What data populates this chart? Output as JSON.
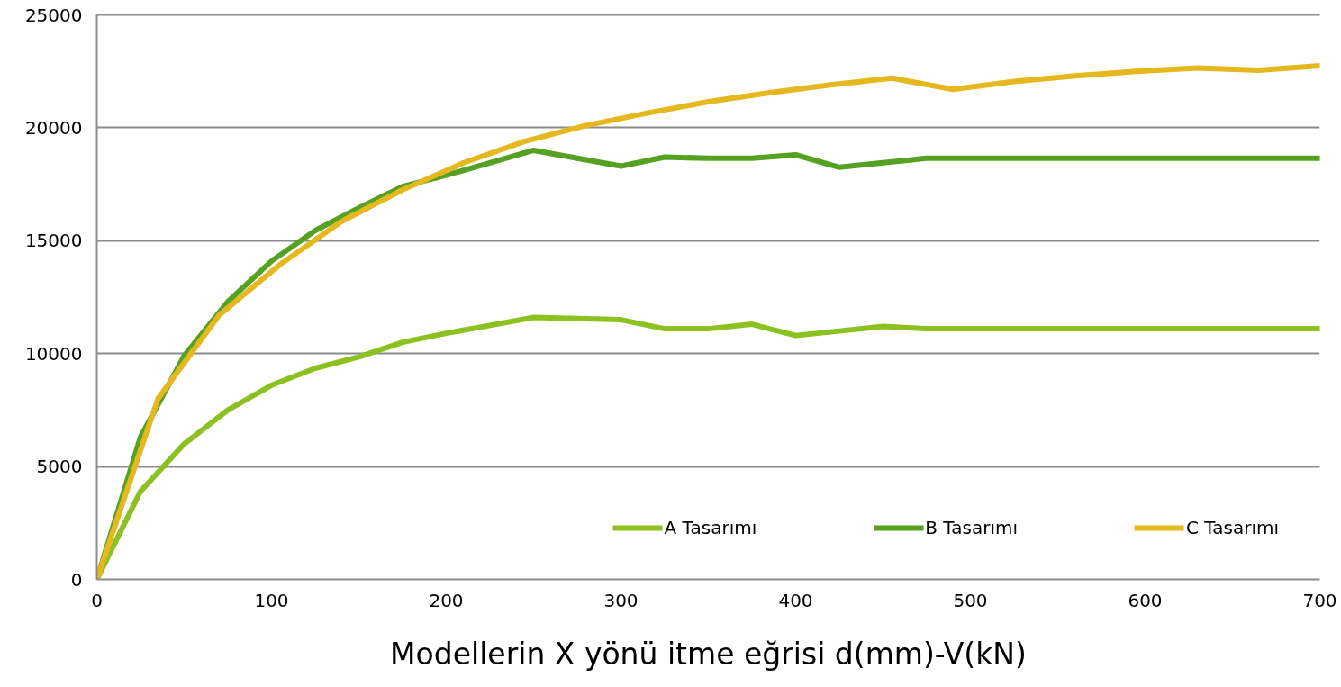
{
  "chart_data": {
    "type": "line",
    "xlabel": "Modellerin X yönü itme eğrisi d(mm)-V(kN)",
    "xlim": [
      0,
      700
    ],
    "ylim": [
      0,
      25000
    ],
    "xticks": [
      0,
      100,
      200,
      300,
      400,
      500,
      600,
      700
    ],
    "yticks": [
      0,
      5000,
      10000,
      15000,
      20000,
      25000
    ],
    "grid": "y",
    "legend": "bottom right",
    "series": [
      {
        "name": "A Tasarımı",
        "color": "#8dc021",
        "x": [
          0,
          25,
          50,
          75,
          100,
          125,
          150,
          175,
          200,
          225,
          250,
          275,
          300,
          325,
          350,
          375,
          400,
          425,
          450,
          475,
          500,
          525,
          550,
          575,
          600,
          625,
          650,
          675,
          700
        ],
        "values": [
          0,
          3900,
          6000,
          7500,
          8600,
          9350,
          9850,
          10500,
          10900,
          11250,
          11600,
          11550,
          11500,
          11100,
          11100,
          11300,
          10800,
          11000,
          11200,
          11100,
          11100,
          11100,
          11100,
          11100,
          11100,
          11100,
          11100,
          11100,
          11100
        ]
      },
      {
        "name": "B Tasarımı",
        "color": "#55a222",
        "x": [
          0,
          25,
          50,
          75,
          100,
          125,
          150,
          175,
          200,
          225,
          250,
          275,
          300,
          325,
          350,
          375,
          400,
          425,
          450,
          475,
          500,
          525,
          550,
          575,
          600,
          625,
          650,
          675,
          700
        ],
        "values": [
          0,
          6300,
          9900,
          12300,
          14100,
          15450,
          16450,
          17400,
          17900,
          18450,
          19000,
          18650,
          18300,
          18700,
          18650,
          18650,
          18800,
          18250,
          18450,
          18650,
          18650,
          18650,
          18650,
          18650,
          18650,
          18650,
          18650,
          18650,
          18650
        ]
      },
      {
        "name": "C Tasarımı",
        "color": "#e6b820",
        "x": [
          0,
          35,
          70,
          105,
          140,
          175,
          210,
          245,
          280,
          315,
          350,
          385,
          420,
          455,
          490,
          525,
          560,
          595,
          630,
          665,
          700
        ],
        "values": [
          0,
          8000,
          11700,
          13950,
          15850,
          17250,
          18450,
          19400,
          20100,
          20650,
          21150,
          21550,
          21900,
          22200,
          21700,
          22050,
          22300,
          22500,
          22650,
          22550,
          22750
        ]
      }
    ]
  }
}
